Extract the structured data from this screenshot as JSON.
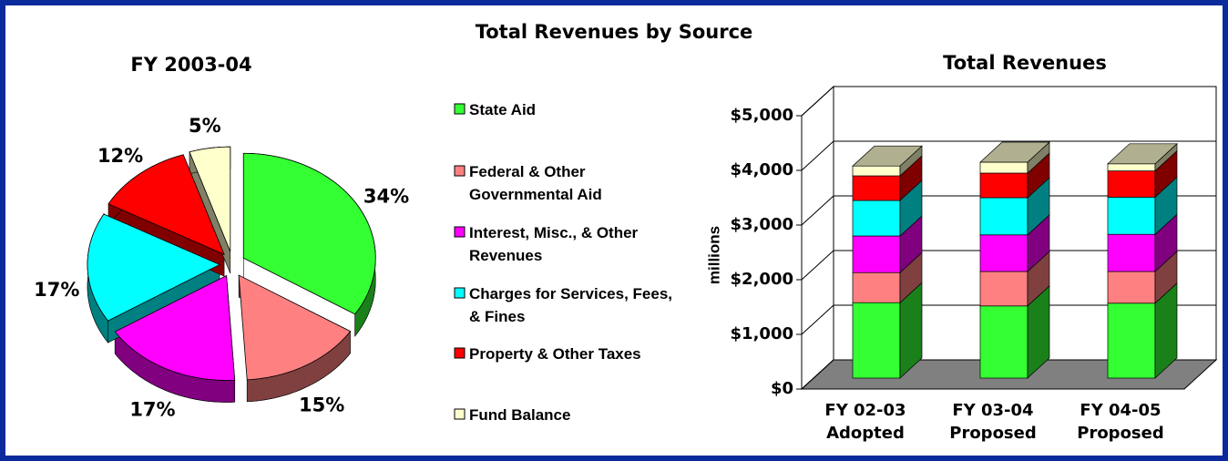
{
  "title": "Total Revenues by Source",
  "chart_data": [
    {
      "type": "pie",
      "title": "FY 2003-04",
      "categories": [
        "State Aid",
        "Federal & Other Governmental Aid",
        "Interest, Misc., & Other Revenues",
        "Charges for Services, Fees, & Fines",
        "Property & Other Taxes",
        "Fund Balance"
      ],
      "values": [
        34,
        15,
        17,
        17,
        12,
        5
      ],
      "value_labels": [
        "34%",
        "15%",
        "17%",
        "17%",
        "12%",
        "5%"
      ],
      "colors": [
        "#33ff33",
        "#ff8080",
        "#ff00ff",
        "#00ffff",
        "#ff0000",
        "#ffffcc"
      ],
      "legend": "right"
    },
    {
      "type": "bar",
      "title": "Total Revenues",
      "stacked": true,
      "ylabel": "millions",
      "categories": [
        "FY 02-03 Adopted",
        "FY 03-04 Proposed",
        "FY 04-05 Proposed"
      ],
      "series": [
        {
          "name": "State Aid",
          "color": "#33ff33",
          "values": [
            1380,
            1320,
            1370
          ]
        },
        {
          "name": "Federal & Other Governmental Aid",
          "color": "#ff8080",
          "values": [
            550,
            630,
            580
          ]
        },
        {
          "name": "Interest, Misc., & Other Revenues",
          "color": "#ff00ff",
          "values": [
            670,
            670,
            680
          ]
        },
        {
          "name": "Charges for Services, Fees, & Fines",
          "color": "#00ffff",
          "values": [
            650,
            680,
            680
          ]
        },
        {
          "name": "Property & Other Taxes",
          "color": "#ff0000",
          "values": [
            450,
            450,
            480
          ]
        },
        {
          "name": "Fund Balance",
          "color": "#ffffcc",
          "values": [
            180,
            200,
            130
          ]
        }
      ],
      "ylim": [
        0,
        5000
      ],
      "yticks": [
        {
          "value": 0,
          "label": "$0"
        },
        {
          "value": 1000,
          "label": "$1,000"
        },
        {
          "value": 2000,
          "label": "$2,000"
        },
        {
          "value": 3000,
          "label": "$3,000"
        },
        {
          "value": 4000,
          "label": "$4,000"
        },
        {
          "value": 5000,
          "label": "$5,000"
        }
      ],
      "grid": true
    }
  ]
}
